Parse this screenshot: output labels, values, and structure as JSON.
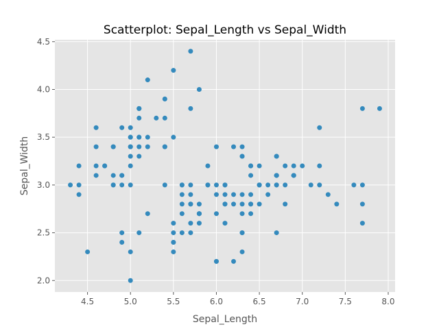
{
  "chart_data": {
    "type": "scatter",
    "title": "Scatterplot: Sepal_Length vs Sepal_Width",
    "xlabel": "Sepal_Length",
    "ylabel": "Sepal_Width",
    "xlim": [
      4.12,
      8.08
    ],
    "ylim": [
      1.88,
      4.52
    ],
    "xticks": [
      "4.5",
      "5.0",
      "5.5",
      "6.0",
      "6.5",
      "7.0",
      "7.5",
      "8.0"
    ],
    "yticks": [
      "2.0",
      "2.5",
      "3.0",
      "3.5",
      "4.0",
      "4.5"
    ],
    "grid": true,
    "background_color": "#e5e5e5",
    "point_color": "#348abd",
    "x": [
      5.1,
      4.9,
      4.7,
      4.6,
      5.0,
      5.4,
      4.6,
      5.0,
      4.4,
      4.9,
      5.4,
      4.8,
      4.8,
      4.3,
      5.8,
      5.7,
      5.4,
      5.1,
      5.7,
      5.1,
      5.4,
      5.1,
      4.6,
      5.1,
      4.8,
      5.0,
      5.0,
      5.2,
      5.2,
      4.7,
      4.8,
      5.4,
      5.2,
      5.5,
      4.9,
      5.0,
      5.5,
      4.9,
      4.4,
      5.1,
      5.0,
      4.5,
      4.4,
      5.0,
      5.1,
      4.8,
      5.1,
      4.6,
      5.3,
      5.0,
      7.0,
      6.4,
      6.9,
      5.5,
      6.5,
      5.7,
      6.3,
      4.9,
      6.6,
      5.2,
      5.0,
      5.9,
      6.0,
      6.1,
      5.6,
      6.7,
      5.6,
      5.8,
      6.2,
      5.6,
      5.9,
      6.1,
      6.3,
      6.1,
      6.4,
      6.6,
      6.8,
      6.7,
      6.0,
      5.7,
      5.5,
      5.5,
      5.8,
      6.0,
      5.4,
      6.0,
      6.7,
      6.3,
      5.6,
      5.5,
      5.5,
      6.1,
      5.8,
      5.0,
      5.6,
      5.7,
      5.7,
      6.2,
      5.1,
      5.7,
      6.3,
      5.8,
      7.1,
      6.3,
      6.5,
      7.6,
      4.9,
      7.3,
      6.7,
      7.2,
      6.5,
      6.4,
      6.8,
      5.7,
      5.8,
      6.4,
      6.5,
      7.7,
      7.7,
      6.0,
      6.9,
      5.6,
      7.7,
      6.3,
      6.7,
      7.2,
      6.2,
      6.1,
      6.4,
      7.2,
      7.4,
      7.9,
      6.4,
      6.3,
      6.1,
      7.7,
      6.3,
      6.4,
      6.0,
      6.9,
      6.7,
      6.9,
      5.8,
      6.8,
      6.7,
      6.7,
      6.3,
      6.5,
      6.2,
      5.9
    ],
    "y": [
      3.5,
      3.0,
      3.2,
      3.1,
      3.6,
      3.9,
      3.4,
      3.4,
      2.9,
      3.1,
      3.7,
      3.4,
      3.0,
      3.0,
      4.0,
      4.4,
      3.9,
      3.5,
      3.8,
      3.8,
      3.4,
      3.7,
      3.6,
      3.3,
      3.4,
      3.0,
      3.4,
      3.5,
      3.4,
      3.2,
      3.1,
      3.4,
      4.1,
      4.2,
      3.1,
      3.2,
      3.5,
      3.6,
      3.0,
      3.4,
      3.5,
      2.3,
      3.2,
      3.5,
      3.8,
      3.0,
      3.8,
      3.2,
      3.7,
      3.3,
      3.2,
      3.2,
      3.1,
      2.3,
      2.8,
      2.8,
      3.3,
      2.4,
      2.9,
      2.7,
      2.0,
      3.0,
      2.2,
      2.9,
      2.9,
      3.1,
      3.0,
      2.7,
      2.2,
      2.5,
      3.2,
      2.8,
      2.5,
      2.8,
      2.9,
      3.0,
      2.8,
      3.0,
      2.9,
      2.6,
      2.4,
      2.4,
      2.7,
      2.7,
      3.0,
      3.4,
      3.1,
      2.3,
      3.0,
      2.5,
      2.6,
      3.0,
      2.6,
      2.3,
      2.7,
      3.0,
      2.9,
      2.9,
      2.5,
      2.8,
      3.3,
      2.7,
      3.0,
      2.9,
      3.0,
      3.0,
      2.5,
      2.9,
      2.5,
      3.6,
      3.2,
      2.7,
      3.0,
      2.5,
      2.8,
      3.2,
      3.0,
      3.8,
      2.6,
      2.2,
      3.2,
      2.8,
      2.8,
      2.7,
      3.3,
      3.2,
      2.8,
      3.0,
      2.8,
      3.0,
      2.8,
      3.8,
      2.8,
      2.8,
      2.6,
      3.0,
      3.4,
      3.1,
      3.0,
      3.1,
      3.1,
      3.1,
      2.7,
      3.2,
      3.3,
      3.0,
      2.5,
      3.0,
      3.4,
      3.0
    ]
  }
}
